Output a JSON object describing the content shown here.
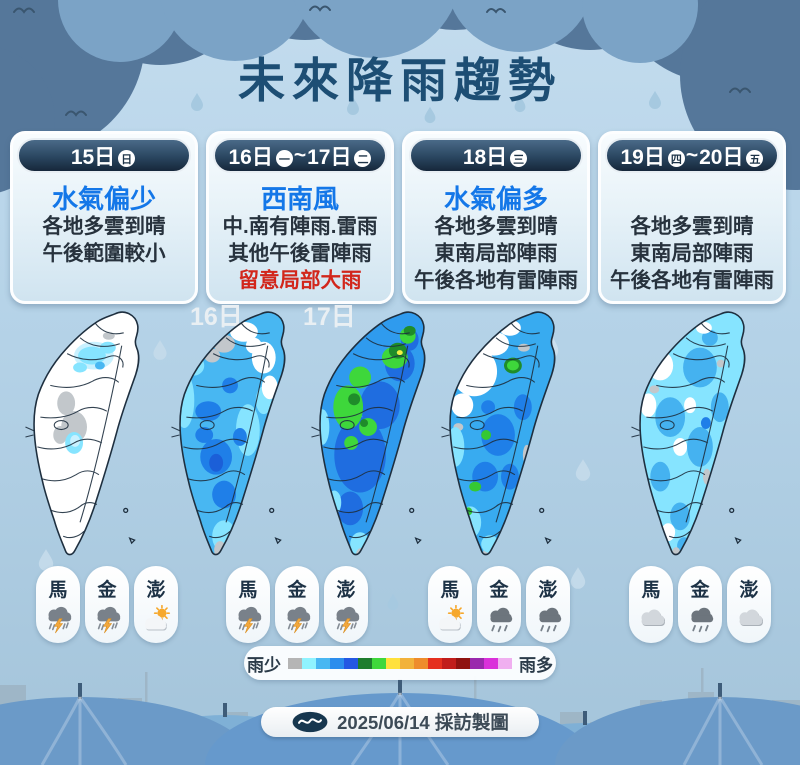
{
  "title": "未來降雨趨勢",
  "cards": [
    {
      "header": {
        "d1": "15日",
        "w1": "日"
      },
      "subtitle": "水氣偏少",
      "lines": [
        "各地多雲到晴",
        "午後範圍較小"
      ]
    },
    {
      "header": {
        "d1": "16日",
        "w1": "一",
        "sep": "~",
        "d2": "17日",
        "w2": "二"
      },
      "subtitle": "西南風",
      "lines": [
        "中.南有陣雨.雷雨",
        "其他午後雷陣雨"
      ],
      "warning": "留意局部大雨"
    },
    {
      "header": {
        "d1": "18日",
        "w1": "三"
      },
      "subtitle": "水氣偏多",
      "lines": [
        "各地多雲到晴",
        "東南局部陣雨",
        "午後各地有雷陣雨"
      ]
    },
    {
      "header": {
        "d1": "19日",
        "w1": "四",
        "sep": "~",
        "d2": "20日",
        "w2": "五"
      },
      "lines": [
        "各地多雲到晴",
        "東南局部陣雨",
        "午後各地有雷陣雨"
      ]
    }
  ],
  "maps": {
    "label_16": "16日",
    "label_17": "17日"
  },
  "island_groups": [
    {
      "items": [
        {
          "name": "馬",
          "weather": "thunderstorm"
        },
        {
          "name": "金",
          "weather": "thunderstorm"
        },
        {
          "name": "澎",
          "weather": "partly-cloudy"
        }
      ]
    },
    {
      "items": [
        {
          "name": "馬",
          "weather": "thunderstorm"
        },
        {
          "name": "金",
          "weather": "thunderstorm"
        },
        {
          "name": "澎",
          "weather": "thunderstorm"
        }
      ]
    },
    {
      "items": [
        {
          "name": "馬",
          "weather": "partly-cloudy"
        },
        {
          "name": "金",
          "weather": "rain"
        },
        {
          "name": "澎",
          "weather": "rain"
        }
      ]
    },
    {
      "items": [
        {
          "name": "馬",
          "weather": "cloudy"
        },
        {
          "name": "金",
          "weather": "rain"
        },
        {
          "name": "澎",
          "weather": "cloudy"
        }
      ]
    }
  ],
  "legend": {
    "less": "雨少",
    "more": "雨多",
    "colors": [
      "#b5b5b5",
      "#8ff3ff",
      "#49b7f2",
      "#2b8ded",
      "#2458e3",
      "#1e7d2e",
      "#3fd83c",
      "#ffe13c",
      "#f2b23a",
      "#ee8c2c",
      "#e5301f",
      "#c11d1b",
      "#8f1210",
      "#9a28ad",
      "#da30da",
      "#f0aff0"
    ]
  },
  "footer": {
    "date_text": "2025/06/14 採訪製圖"
  },
  "colors": {
    "title_navy": "#1d4e74",
    "highlight_blue": "#1477e8",
    "warning_red": "#d2261b",
    "header_navy": "#1d3347"
  }
}
